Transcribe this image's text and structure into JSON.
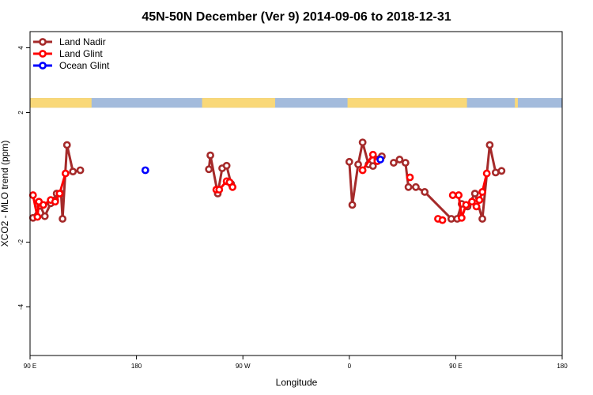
{
  "chart_data": {
    "type": "line",
    "title": "45N-50N December (Ver 9)   2014-09-06 to 2018-12-31",
    "xlabel": "Longitude",
    "ylabel": "XCO2 - MLO trend (ppm)",
    "xlim": [
      0,
      180
    ],
    "ylim": [
      -5.5,
      4.5
    ],
    "x_ticks": [
      {
        "value": 0,
        "label": "90 E"
      },
      {
        "value": 36,
        "label": "180"
      },
      {
        "value": 72,
        "label": "90 W"
      },
      {
        "value": 108,
        "label": "0"
      },
      {
        "value": 144,
        "label": "90 E"
      },
      {
        "value": 180,
        "label": "180"
      }
    ],
    "y_ticks": [
      {
        "value": 4,
        "label": "4"
      },
      {
        "value": 2,
        "label": "2"
      },
      {
        "value": -2,
        "label": "-2"
      },
      {
        "value": -4,
        "label": "-4"
      }
    ],
    "grid": false,
    "legend_position": "top-left",
    "land_mask": {
      "ocean_color": "#a3bbdc",
      "land_color": "#f9d878",
      "y_range": [
        2.15,
        2.45
      ],
      "land_segments": [
        [
          0,
          20.8
        ],
        [
          58.2,
          82.9
        ],
        [
          107.4,
          147.8
        ],
        [
          164.0,
          165.0
        ]
      ]
    },
    "series": [
      {
        "name": "Land Nadir",
        "color": "#a52a2a",
        "connect": true,
        "segments": [
          [
            [
              1.0,
              -1.25
            ],
            [
              3.5,
              -0.88
            ],
            [
              5.0,
              -1.2
            ],
            [
              7.0,
              -0.8
            ],
            [
              8.5,
              -0.7
            ],
            [
              9.0,
              -0.5
            ],
            [
              10.5,
              -0.5
            ],
            [
              11.0,
              -1.28
            ],
            [
              12.5,
              1.0
            ],
            [
              14.5,
              0.18
            ],
            [
              17.0,
              0.22
            ]
          ],
          [
            [
              60.5,
              0.25
            ],
            [
              61.0,
              0.68
            ],
            [
              63.5,
              -0.5
            ],
            [
              65.0,
              0.28
            ],
            [
              66.5,
              0.36
            ],
            [
              68.0,
              -0.2
            ]
          ],
          [
            [
              108.0,
              0.48
            ],
            [
              109.0,
              -0.85
            ],
            [
              111.0,
              0.4
            ],
            [
              112.5,
              1.08
            ],
            [
              114.5,
              0.4
            ],
            [
              116.0,
              0.35
            ],
            [
              117.5,
              0.55
            ],
            [
              119.0,
              0.65
            ]
          ],
          [
            [
              123.0,
              0.45
            ],
            [
              125.0,
              0.55
            ],
            [
              127.0,
              0.45
            ],
            [
              128.0,
              -0.3
            ],
            [
              130.5,
              -0.3
            ],
            [
              133.5,
              -0.45
            ],
            [
              142.5,
              -1.28
            ],
            [
              144.5,
              -1.28
            ],
            [
              146.0,
              -0.82
            ],
            [
              148.0,
              -0.9
            ],
            [
              150.5,
              -0.5
            ],
            [
              153.0,
              -1.28
            ],
            [
              155.5,
              1.0
            ],
            [
              157.5,
              0.15
            ],
            [
              159.5,
              0.2
            ]
          ]
        ]
      },
      {
        "name": "Land Glint",
        "color": "#ff0000",
        "connect": true,
        "segments": [
          [
            [
              1.0,
              -0.55
            ],
            [
              2.5,
              -1.22
            ],
            [
              3.0,
              -0.75
            ],
            [
              4.5,
              -0.85
            ],
            [
              7.0,
              -0.7
            ],
            [
              8.5,
              -0.75
            ],
            [
              10.0,
              -0.5
            ],
            [
              12.0,
              0.12
            ]
          ],
          [
            [
              63.0,
              -0.38
            ],
            [
              64.0,
              -0.38
            ],
            [
              66.5,
              -0.12
            ],
            [
              67.5,
              -0.15
            ],
            [
              68.5,
              -0.3
            ]
          ],
          [
            [
              112.5,
              0.22
            ],
            [
              116.0,
              0.7
            ],
            [
              117.5,
              0.5
            ]
          ],
          [
            [
              128.5,
              0.0
            ]
          ],
          [
            [
              138.0,
              -1.28
            ],
            [
              139.5,
              -1.32
            ]
          ],
          [
            [
              143.0,
              -0.55
            ],
            [
              145.0,
              -0.55
            ],
            [
              146.0,
              -1.25
            ],
            [
              147.5,
              -0.85
            ],
            [
              149.5,
              -0.75
            ],
            [
              151.0,
              -0.9
            ],
            [
              152.0,
              -0.7
            ],
            [
              153.0,
              -0.45
            ],
            [
              154.5,
              0.12
            ]
          ]
        ]
      },
      {
        "name": "Ocean Glint",
        "color": "#0000ff",
        "connect": false,
        "segments": [
          [
            [
              39.0,
              0.22
            ]
          ],
          [
            [
              118.5,
              0.55
            ]
          ]
        ]
      }
    ]
  }
}
